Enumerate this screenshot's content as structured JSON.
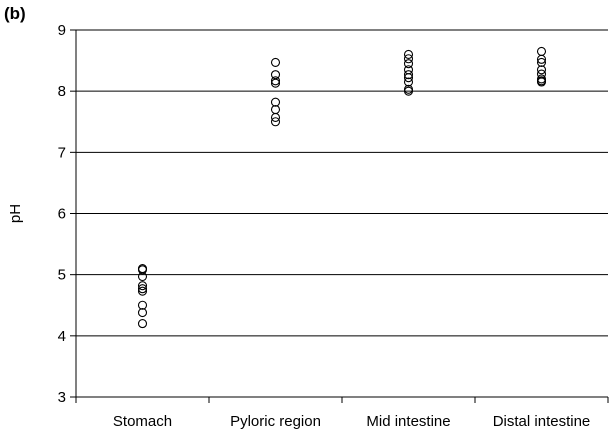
{
  "panel_label": "(b)",
  "chart_data": {
    "type": "scatter",
    "title": "",
    "xlabel": "",
    "ylabel": "pH",
    "ylim": [
      3,
      9
    ],
    "yticks": [
      "3",
      "4",
      "5",
      "6",
      "7",
      "8",
      "9"
    ],
    "grid": "horizontal",
    "categories": [
      "Stomach",
      "Pyloric region",
      "Mid intestine",
      "Distal intestine"
    ],
    "points": [
      [
        5.1,
        5.08,
        4.97,
        4.82,
        4.77,
        4.73,
        4.5,
        4.38,
        4.2
      ],
      [
        8.47,
        8.27,
        8.17,
        8.13,
        7.82,
        7.7,
        7.57,
        7.5
      ],
      [
        8.6,
        8.53,
        8.45,
        8.35,
        8.27,
        8.22,
        8.15,
        8.03,
        8.0
      ],
      [
        8.65,
        8.52,
        8.47,
        8.35,
        8.28,
        8.2,
        8.17,
        8.15
      ]
    ]
  }
}
